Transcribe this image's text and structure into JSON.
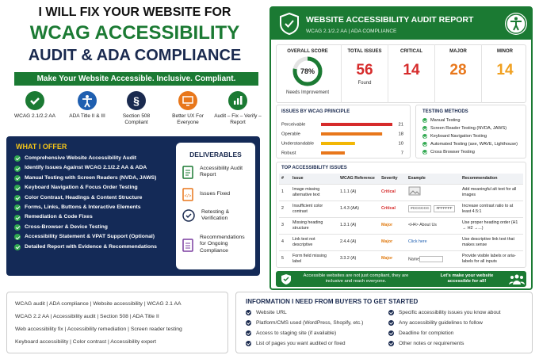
{
  "headline": [
    "I WILL FIX YOUR WEBSITE FOR",
    "WCAG ACCESSIBILITY",
    "AUDIT & ADA COMPLIANCE"
  ],
  "tagline": "Make Your Website Accessible. Inclusive. Compliant.",
  "features": [
    "WCAG 2.1/2.2 AA",
    "ADA Title II & III",
    "Section 508 Compliant",
    "Better UX For Everyone",
    "Audit – Fix – Verify – Report"
  ],
  "offer": {
    "title": "WHAT I OFFER",
    "items": [
      "Comprehensive Website Accessibility Audit",
      "Identify Issues Against WCAG 2.1/2.2 AA & ADA",
      "Manual Testing with Screen Readers (NVDA, JAWS)",
      "Keyboard Navigation & Focus Order Testing",
      "Color Contrast, Headings & Content Structure",
      "Forms, Links, Buttons & Interactive Elements",
      "Remediation & Code Fixes",
      "Cross-Browser & Device Testing",
      "Accessibility Statement & VPAT Support (Optional)",
      "Detailed Report with Evidence & Recommendations"
    ]
  },
  "deliverables": {
    "title": "DELIVERABLES",
    "items": [
      "Accessibility Audit Report",
      "Issues Fixed",
      "Retesting & Verification",
      "Recommendations for Ongoing Compliance"
    ]
  },
  "report": {
    "title": "WEBSITE ACCESSIBILITY AUDIT REPORT",
    "subtitle": "WCAG 2.1/2.2 AA  |  ADA COMPLIANCE",
    "score": {
      "label": "OVERALL SCORE",
      "value": 78,
      "value_label": "78%",
      "note": "Needs Improvement",
      "color": "#1b7a33"
    },
    "stats": [
      {
        "label": "TOTAL ISSUES",
        "value": 56,
        "note": "Found",
        "color": "#d62b2b"
      },
      {
        "label": "CRITICAL",
        "value": 14,
        "color": "#d62b2b"
      },
      {
        "label": "MAJOR",
        "value": 28,
        "color": "#e8771b"
      },
      {
        "label": "MINOR",
        "value": 14,
        "color": "#f0a020"
      }
    ],
    "principles": {
      "title": "ISSUES BY WCAG PRINCIPLE",
      "items": [
        {
          "name": "Perceivable",
          "value": 21,
          "color": "#d62b2b"
        },
        {
          "name": "Operable",
          "value": 18,
          "color": "#e8771b"
        },
        {
          "name": "Understandable",
          "value": 10,
          "color": "#f2b705"
        },
        {
          "name": "Robust",
          "value": 7,
          "color": "#e8771b"
        }
      ]
    },
    "testing": {
      "title": "TESTING METHODS",
      "items": [
        "Manual Testing",
        "Screen Reader Testing (NVDA, JAWS)",
        "Keyboard Navigation Testing",
        "Automated Testing (axe, WAVE, Lighthouse)",
        "Cross Browser Testing"
      ]
    },
    "issues": {
      "title": "TOP ACCESSIBILITY ISSUES",
      "headers": [
        "#",
        "Issue",
        "WCAG Reference",
        "Severity",
        "Example",
        "Recommendation"
      ],
      "rows": [
        {
          "num": "1",
          "issue": "Image missing alternative text",
          "ref": "1.1.1 (A)",
          "severity": "Critical",
          "rec": "Add meaningful alt text for all images"
        },
        {
          "num": "2",
          "issue": "Insufficient color contrast",
          "ref": "1.4.3 (AA)",
          "severity": "Critical",
          "example": [
            "#CCCCCC",
            "#FFFFFF"
          ],
          "rec": "Increase contrast ratio to at least 4.5:1"
        },
        {
          "num": "3",
          "issue": "Missing heading structure",
          "ref": "1.3.1 (A)",
          "severity": "Major",
          "example": [
            "<H4> About Us"
          ],
          "rec": "Use proper heading order (H1 → H2 →...)"
        },
        {
          "num": "4",
          "issue": "Link text not descriptive",
          "ref": "2.4.4 (A)",
          "severity": "Major",
          "example": [
            "Click here"
          ],
          "rec": "Use descriptive link text that makes sense"
        },
        {
          "num": "5",
          "issue": "Form field missing label",
          "ref": "3.3.2 (A)",
          "severity": "Major",
          "example": [
            "Name"
          ],
          "rec": "Provide visible labels or aria-labels for all inputs"
        }
      ]
    },
    "banner": [
      "Accessible websites are not just compliant, they are inclusive and reach everyone.",
      "Let's make your website accessible for all!"
    ]
  },
  "tags": [
    "WCAG audit  |  ADA compliance  |  Website accessibility  |  WCAG 2.1 AA",
    "WCAG 2.2 AA  |  Accessibility audit  |  Section 508  |  ADA Title II",
    "Web accessibility fix  |  Accessibility remediation  |  Screen reader testing",
    "Keyboard accessibility  |  Color contrast  |  Accessibility expert"
  ],
  "info": {
    "title": "INFORMATION I NEED FROM BUYERS TO GET STARTED",
    "items": [
      "Website URL",
      "Platform/CMS used (WordPress, Shopify, etc.)",
      "Access to staging site (if available)",
      "List of pages you want audited or fixed",
      "Specific accessibility issues you know about",
      "Any accessibility guidelines to follow",
      "Deadline for completion",
      "Other notes or requirements"
    ]
  }
}
